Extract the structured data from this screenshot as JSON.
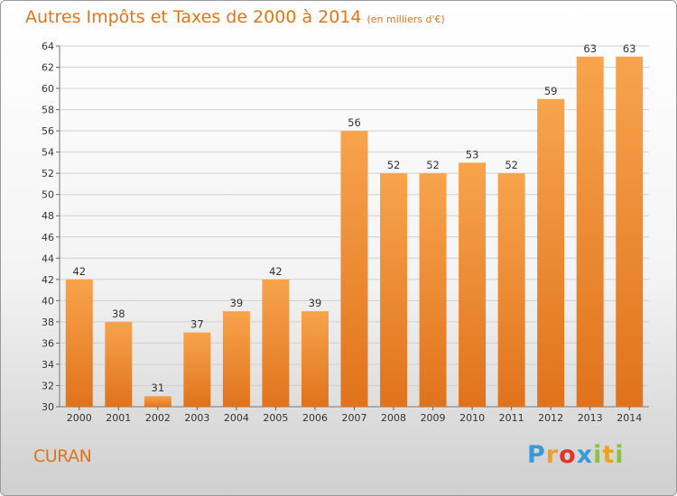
{
  "header": {
    "title": "Autres Impôts et Taxes de 2000 à 2014",
    "unit": "(en milliers d'€)"
  },
  "footer": {
    "place": "CURAN",
    "logo": {
      "text": "Proxiti",
      "letters": [
        {
          "ch": "P",
          "color": "#3a9ad9"
        },
        {
          "ch": "r",
          "color": "#f0a020"
        },
        {
          "ch": "o",
          "color": "#e2332a"
        },
        {
          "ch": "x",
          "color": "#3a9ad9"
        },
        {
          "ch": "i",
          "color": "#8ac43f"
        },
        {
          "ch": "t",
          "color": "#f0a020"
        },
        {
          "ch": "i",
          "color": "#8ac43f"
        }
      ]
    }
  },
  "colors": {
    "bar_top": "#f7a44d",
    "bar_bottom": "#e0731c",
    "grid": "#d0d0d0",
    "accent": "#e0741a"
  },
  "chart_data": {
    "type": "bar",
    "title": "Autres Impôts et Taxes de 2000 à 2014",
    "subtitle": "(en milliers d'€)",
    "categories": [
      "2000",
      "2001",
      "2002",
      "2003",
      "2004",
      "2005",
      "2006",
      "2007",
      "2008",
      "2009",
      "2010",
      "2011",
      "2012",
      "2013",
      "2014"
    ],
    "values": [
      42,
      38,
      31,
      37,
      39,
      42,
      39,
      56,
      52,
      52,
      53,
      52,
      59,
      63,
      63
    ],
    "ylim": [
      30,
      64
    ],
    "yticks": [
      30,
      32,
      34,
      36,
      38,
      40,
      42,
      44,
      46,
      48,
      50,
      52,
      54,
      56,
      58,
      60,
      62,
      64
    ],
    "grid": true,
    "data_labels": true
  }
}
